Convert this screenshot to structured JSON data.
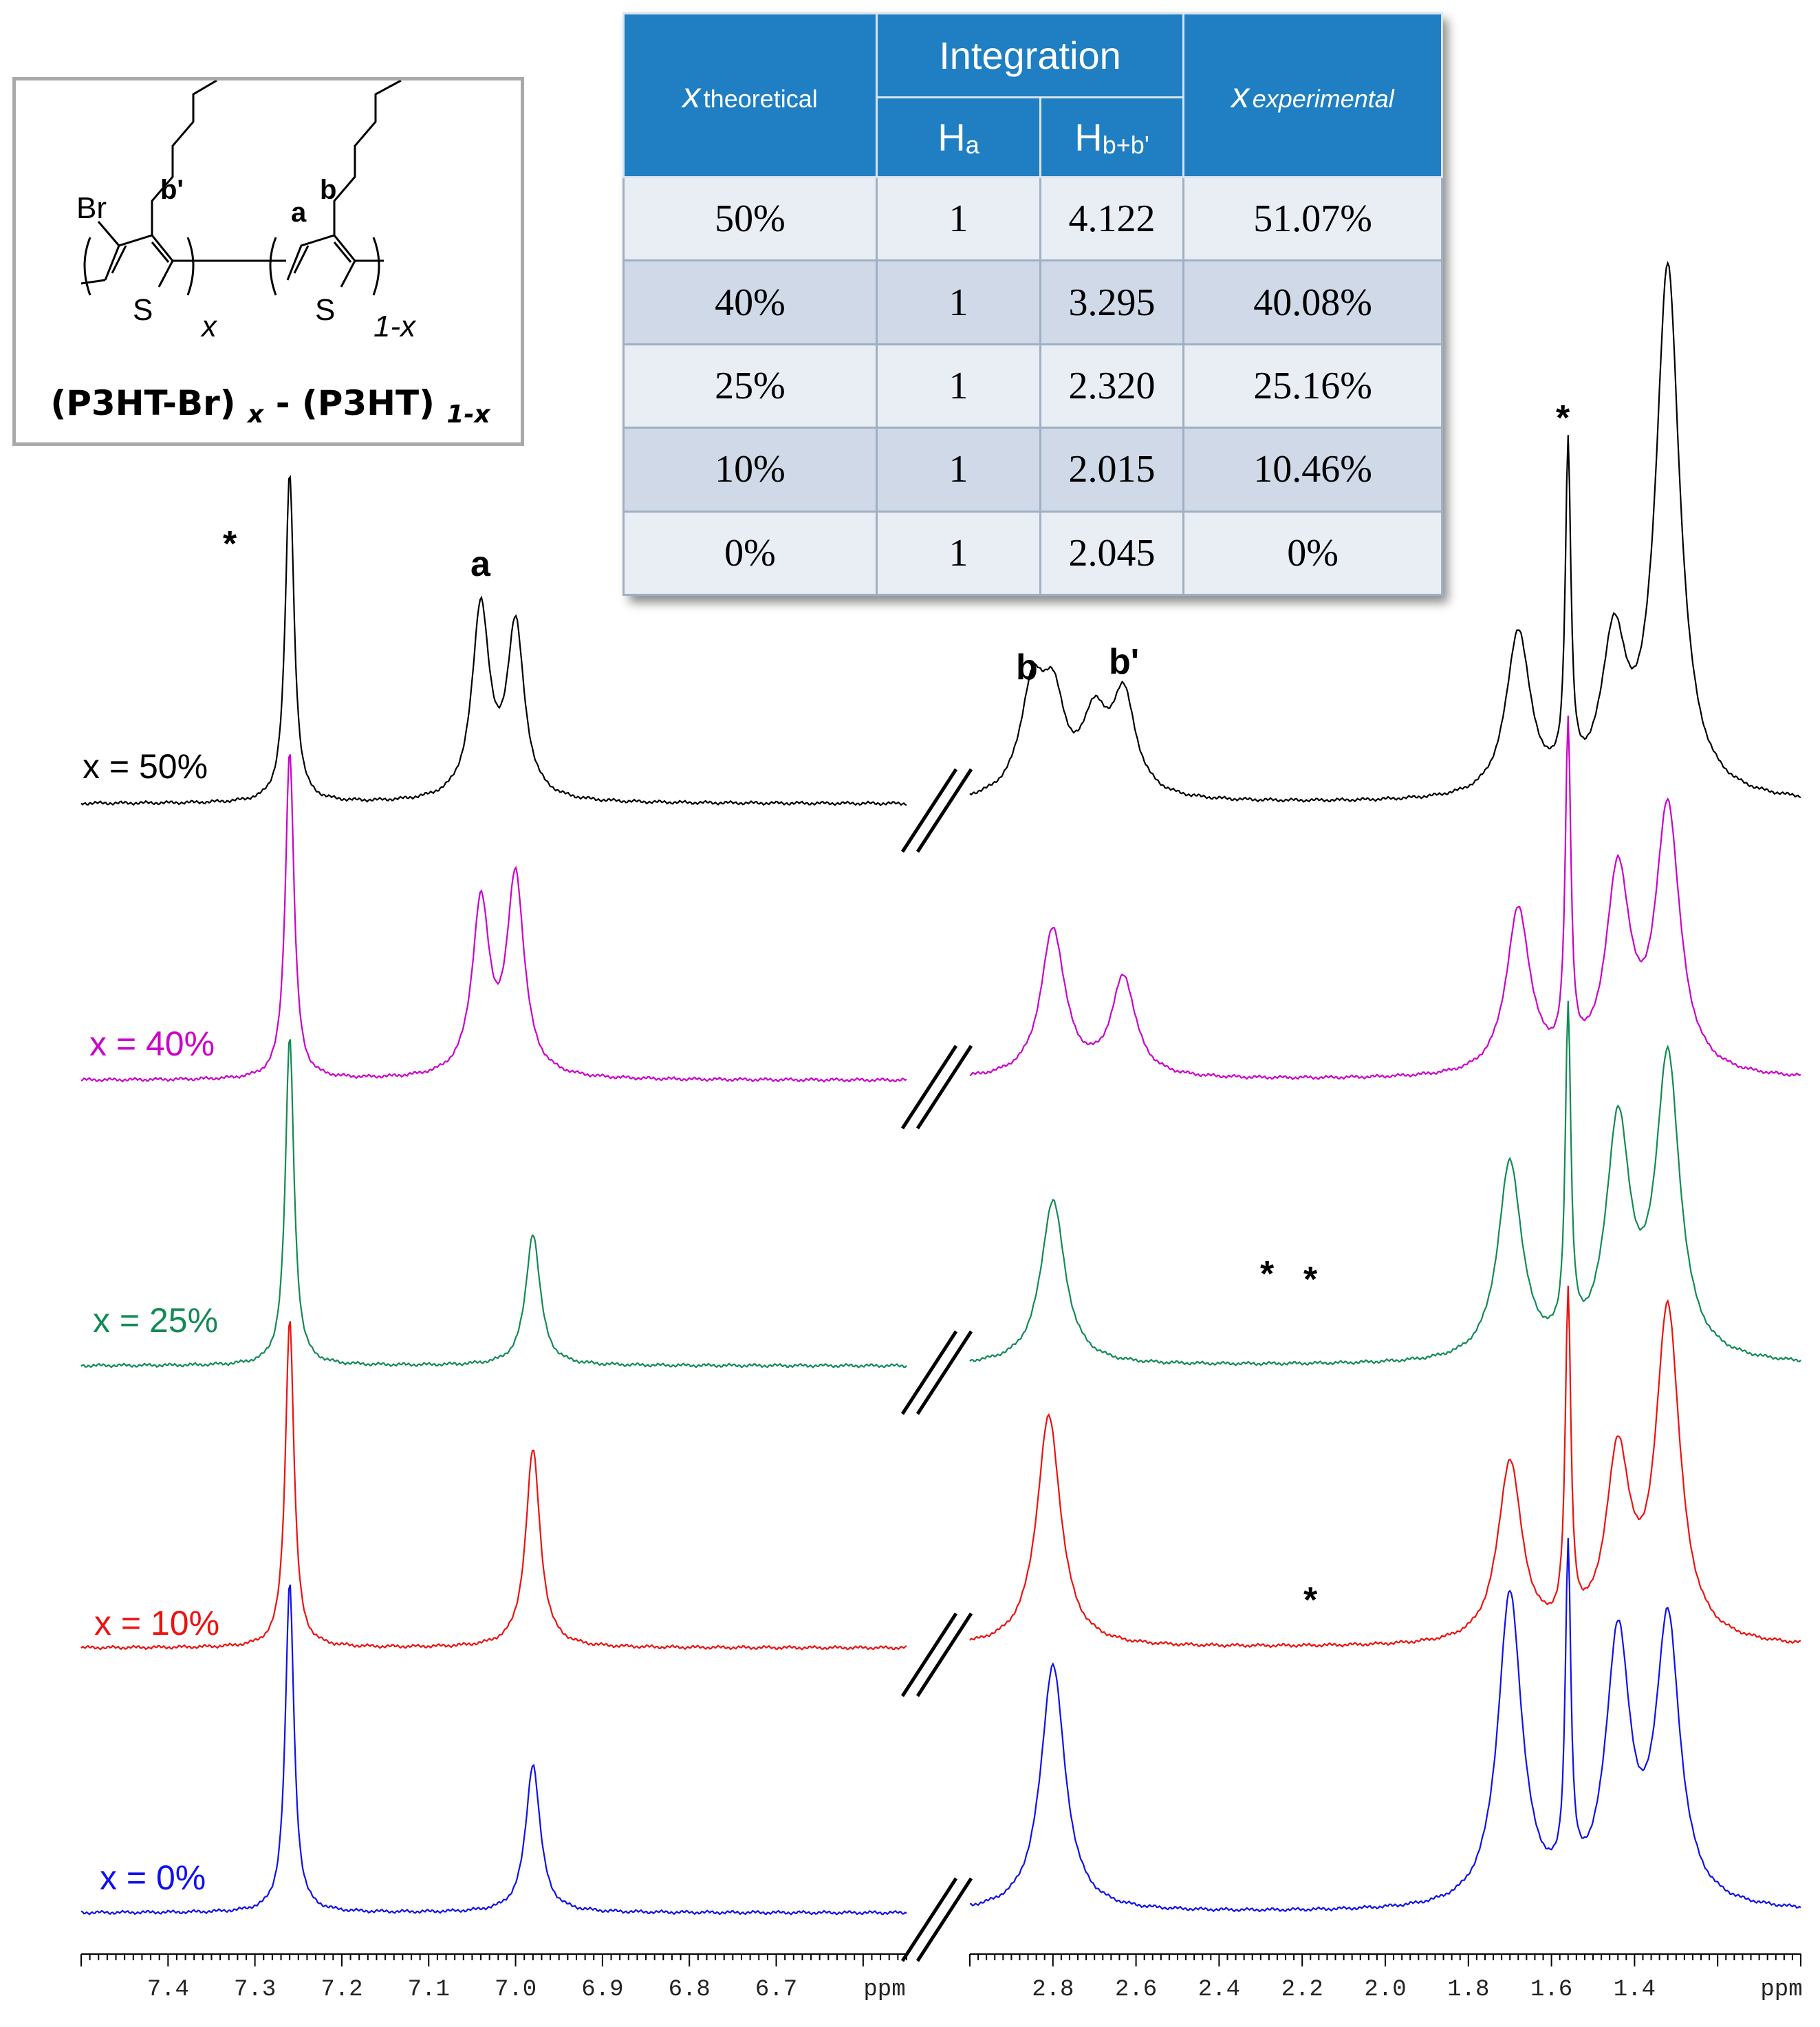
{
  "chart_data": {
    "type": "line",
    "xlabel": "ppm",
    "x_axis_left_panel": {
      "range": [
        7.5,
        6.55
      ],
      "ticks": [
        "7.4",
        "7.3",
        "7.2",
        "7.1",
        "7.0",
        "6.9",
        "6.8",
        "6.7"
      ]
    },
    "x_axis_right_panel": {
      "range": [
        3.0,
        1.0
      ],
      "ticks": [
        "2.8",
        "2.6",
        "2.4",
        "2.2",
        "2.0",
        "1.8",
        "1.6",
        "1.4"
      ]
    },
    "axis_break": true,
    "series": [
      {
        "name": "x = 50%",
        "color": "#000000",
        "peaks": [
          {
            "ppm": 7.26,
            "height": 1.0
          },
          {
            "ppm": 7.04,
            "height": 0.58
          },
          {
            "ppm": 7.0,
            "height": 0.52
          },
          {
            "ppm": 2.85,
            "height": 0.3
          },
          {
            "ppm": 2.8,
            "height": 0.27
          },
          {
            "ppm": 2.7,
            "height": 0.22
          },
          {
            "ppm": 2.63,
            "height": 0.3
          },
          {
            "ppm": 1.68,
            "height": 0.5
          },
          {
            "ppm": 1.56,
            "height": 1.0
          },
          {
            "ppm": 1.45,
            "height": 0.45
          },
          {
            "ppm": 1.32,
            "height": 1.6
          }
        ]
      },
      {
        "name": "x = 40%",
        "color": "#cc00cc",
        "peaks": [
          {
            "ppm": 7.26,
            "height": 1.0
          },
          {
            "ppm": 7.04,
            "height": 0.52
          },
          {
            "ppm": 7.0,
            "height": 0.6
          },
          {
            "ppm": 2.8,
            "height": 0.45
          },
          {
            "ppm": 2.63,
            "height": 0.3
          },
          {
            "ppm": 1.68,
            "height": 0.5
          },
          {
            "ppm": 1.56,
            "height": 1.0
          },
          {
            "ppm": 1.44,
            "height": 0.6
          },
          {
            "ppm": 1.32,
            "height": 0.8
          }
        ]
      },
      {
        "name": "x = 25%",
        "color": "#138a55",
        "peaks": [
          {
            "ppm": 7.26,
            "height": 1.0
          },
          {
            "ppm": 6.98,
            "height": 0.4
          },
          {
            "ppm": 2.8,
            "height": 0.5
          },
          {
            "ppm": 1.7,
            "height": 0.6
          },
          {
            "ppm": 1.56,
            "height": 1.0
          },
          {
            "ppm": 1.44,
            "height": 0.7
          },
          {
            "ppm": 1.32,
            "height": 0.9
          }
        ]
      },
      {
        "name": "x = 10%",
        "color": "#ee1111",
        "peaks": [
          {
            "ppm": 7.26,
            "height": 1.0
          },
          {
            "ppm": 6.98,
            "height": 0.6
          },
          {
            "ppm": 2.81,
            "height": 0.7
          },
          {
            "ppm": 1.7,
            "height": 0.55
          },
          {
            "ppm": 1.56,
            "height": 1.0
          },
          {
            "ppm": 1.44,
            "height": 0.55
          },
          {
            "ppm": 1.32,
            "height": 1.0
          }
        ]
      },
      {
        "name": "x = 0%",
        "color": "#1010ee",
        "peaks": [
          {
            "ppm": 7.26,
            "height": 1.0
          },
          {
            "ppm": 6.98,
            "height": 0.45
          },
          {
            "ppm": 2.8,
            "height": 0.75
          },
          {
            "ppm": 1.7,
            "height": 0.95
          },
          {
            "ppm": 1.56,
            "height": 1.0
          },
          {
            "ppm": 1.44,
            "height": 0.8
          },
          {
            "ppm": 1.32,
            "height": 0.85
          }
        ]
      }
    ],
    "annotations": [
      "a",
      "b",
      "b'",
      "*"
    ]
  },
  "peak_labels": {
    "a": "a",
    "b": "b",
    "b_prime": "b'",
    "star": "*"
  },
  "structure": {
    "substituent": "Br",
    "label_b_prime": "b'",
    "label_a": "a",
    "label_b": "b",
    "sulfur": "S",
    "subscript_left": "x",
    "subscript_right": "1-x",
    "formula_left": "(P3HT-Br)",
    "formula_left_sub": "x",
    "formula_dash": "-",
    "formula_right": "(P3HT)",
    "formula_right_sub": "1-x"
  },
  "table": {
    "header": {
      "x_theoretical_symbol": "x",
      "x_theoretical_sub": "theoretical",
      "integration": "Integration",
      "ha_main": "H",
      "ha_sub": "a",
      "hb_main": "H",
      "hb_sub": "b+b'",
      "x_experimental_symbol": "x",
      "x_experimental_sub": "experimental"
    },
    "rows": [
      {
        "x_theoretical": "50%",
        "ha": "1",
        "hbb": "4.122",
        "x_experimental": "51.07%"
      },
      {
        "x_theoretical": "40%",
        "ha": "1",
        "hbb": "3.295",
        "x_experimental": "40.08%"
      },
      {
        "x_theoretical": "25%",
        "ha": "1",
        "hbb": "2.320",
        "x_experimental": "25.16%"
      },
      {
        "x_theoretical": "10%",
        "ha": "1",
        "hbb": "2.015",
        "x_experimental": "10.46%"
      },
      {
        "x_theoretical": "0%",
        "ha": "1",
        "hbb": "2.045",
        "x_experimental": "0%"
      }
    ]
  }
}
